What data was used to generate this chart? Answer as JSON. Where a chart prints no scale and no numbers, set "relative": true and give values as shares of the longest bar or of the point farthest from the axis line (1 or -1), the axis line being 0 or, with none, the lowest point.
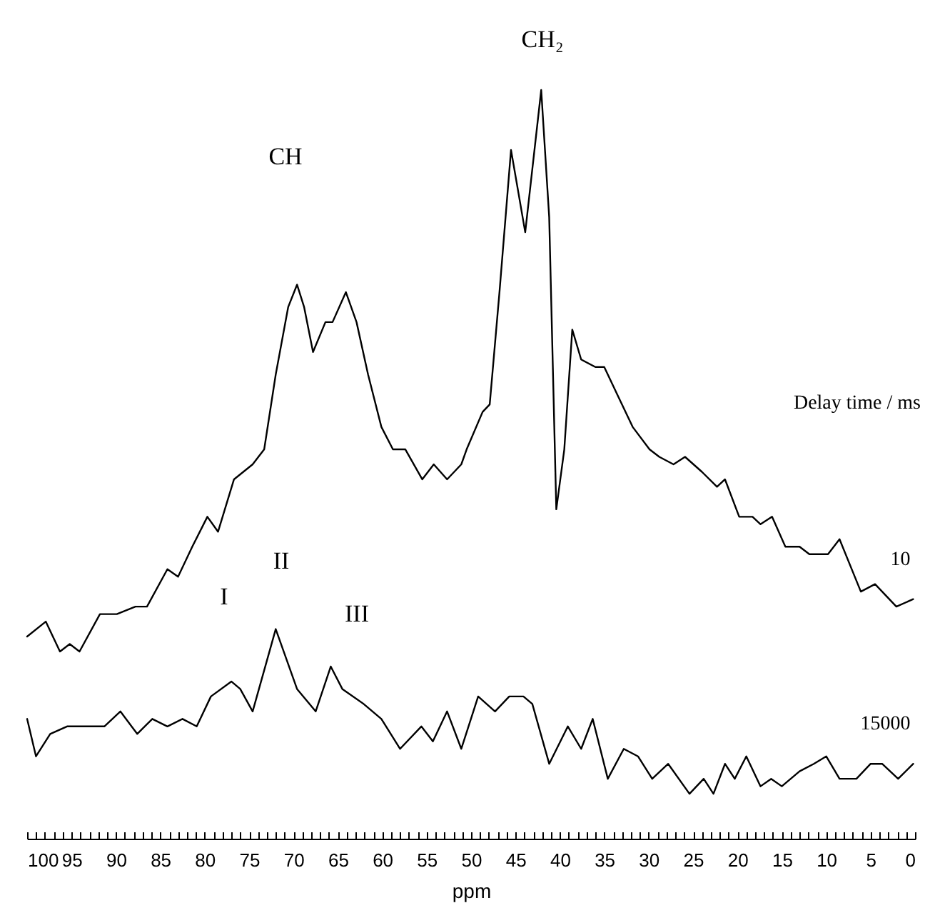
{
  "chart_data": {
    "type": "line",
    "relative": true,
    "xlabel": "ppm",
    "legend_title": "Delay time / ms",
    "xlim": [
      100,
      0
    ],
    "xticks": [
      100,
      {
        "value": 99,
        "label": null
      },
      {
        "value": 98,
        "label": null
      },
      {
        "value": 97,
        "label": null
      },
      {
        "value": 96,
        "label": null
      },
      95,
      {
        "value": 94,
        "label": null
      },
      {
        "value": 93,
        "label": null
      },
      {
        "value": 92,
        "label": null
      },
      {
        "value": 91,
        "label": null
      },
      90,
      {
        "value": 89,
        "label": null
      },
      {
        "value": 88,
        "label": null
      },
      {
        "value": 87,
        "label": null
      },
      {
        "value": 86,
        "label": null
      },
      85,
      {
        "value": 84,
        "label": null
      },
      {
        "value": 83,
        "label": null
      },
      {
        "value": 82,
        "label": null
      },
      {
        "value": 81,
        "label": null
      },
      80,
      {
        "value": 79,
        "label": null
      },
      {
        "value": 78,
        "label": null
      },
      {
        "value": 77,
        "label": null
      },
      {
        "value": 76,
        "label": null
      },
      75,
      {
        "value": 74,
        "label": null
      },
      {
        "value": 73,
        "label": null
      },
      {
        "value": 72,
        "label": null
      },
      {
        "value": 71,
        "label": null
      },
      70,
      {
        "value": 69,
        "label": null
      },
      {
        "value": 68,
        "label": null
      },
      {
        "value": 67,
        "label": null
      },
      {
        "value": 66,
        "label": null
      },
      65,
      {
        "value": 64,
        "label": null
      },
      {
        "value": 63,
        "label": null
      },
      {
        "value": 62,
        "label": null
      },
      {
        "value": 61,
        "label": null
      },
      60,
      {
        "value": 59,
        "label": null
      },
      {
        "value": 58,
        "label": null
      },
      {
        "value": 57,
        "label": null
      },
      {
        "value": 56,
        "label": null
      },
      55,
      {
        "value": 54,
        "label": null
      },
      {
        "value": 53,
        "label": null
      },
      {
        "value": 52,
        "label": null
      },
      {
        "value": 51,
        "label": null
      },
      50,
      {
        "value": 49,
        "label": null
      },
      {
        "value": 48,
        "label": null
      },
      {
        "value": 47,
        "label": null
      },
      {
        "value": 46,
        "label": null
      },
      45,
      {
        "value": 44,
        "label": null
      },
      {
        "value": 43,
        "label": null
      },
      {
        "value": 42,
        "label": null
      },
      {
        "value": 41,
        "label": null
      },
      40,
      {
        "value": 39,
        "label": null
      },
      {
        "value": 38,
        "label": null
      },
      {
        "value": 37,
        "label": null
      },
      {
        "value": 36,
        "label": null
      },
      35,
      {
        "value": 34,
        "label": null
      },
      {
        "value": 33,
        "label": null
      },
      {
        "value": 32,
        "label": null
      },
      {
        "value": 31,
        "label": null
      },
      30,
      {
        "value": 29,
        "label": null
      },
      {
        "value": 28,
        "label": null
      },
      {
        "value": 27,
        "label": null
      },
      {
        "value": 26,
        "label": null
      },
      25,
      {
        "value": 24,
        "label": null
      },
      {
        "value": 23,
        "label": null
      },
      {
        "value": 22,
        "label": null
      },
      {
        "value": 21,
        "label": null
      },
      20,
      {
        "value": 19,
        "label": null
      },
      {
        "value": 18,
        "label": null
      },
      {
        "value": 17,
        "label": null
      },
      {
        "value": 16,
        "label": null
      },
      15,
      {
        "value": 14,
        "label": null
      },
      {
        "value": 13,
        "label": null
      },
      {
        "value": 12,
        "label": null
      },
      {
        "value": 11,
        "label": null
      },
      10,
      {
        "value": 9,
        "label": null
      },
      {
        "value": 8,
        "label": null
      },
      {
        "value": 7,
        "label": null
      },
      {
        "value": 6,
        "label": null
      },
      5,
      {
        "value": 4,
        "label": null
      },
      {
        "value": 3,
        "label": null
      },
      {
        "value": 2,
        "label": null
      },
      {
        "value": 1,
        "label": null
      },
      0
    ],
    "series": [
      {
        "name": "10",
        "color": "#000000",
        "x": [
          100,
          97.9,
          96.3,
          95.2,
          94.1,
          91.8,
          89.9,
          87.8,
          86.5,
          84.2,
          83.0,
          81.4,
          79.7,
          78.5,
          76.7,
          74.6,
          73.3,
          72.0,
          70.6,
          69.6,
          68.8,
          67.8,
          66.4,
          65.6,
          64.1,
          62.9,
          61.6,
          60.1,
          58.8,
          57.4,
          55.5,
          54.2,
          52.7,
          51.1,
          50.5,
          48.7,
          47.9,
          46.8,
          45.5,
          43.9,
          42.1,
          41.2,
          40.4,
          39.5,
          38.6,
          37.6,
          36.0,
          35.0,
          33.4,
          31.8,
          29.9,
          28.8,
          27.2,
          25.9,
          24.0,
          22.3,
          21.4,
          19.8,
          18.3,
          17.4,
          16.1,
          14.6,
          13.0,
          11.9,
          9.8,
          8.5,
          6.1,
          4.5,
          2.1,
          0.2
        ],
        "values": [
          0.27,
          0.29,
          0.25,
          0.26,
          0.25,
          0.3,
          0.3,
          0.31,
          0.31,
          0.36,
          0.35,
          0.39,
          0.43,
          0.41,
          0.48,
          0.5,
          0.52,
          0.62,
          0.71,
          0.74,
          0.71,
          0.65,
          0.69,
          0.69,
          0.73,
          0.69,
          0.62,
          0.55,
          0.52,
          0.52,
          0.48,
          0.5,
          0.48,
          0.5,
          0.52,
          0.57,
          0.58,
          0.73,
          0.92,
          0.81,
          1,
          0.83,
          0.44,
          0.52,
          0.68,
          0.64,
          0.63,
          0.63,
          0.59,
          0.55,
          0.52,
          0.51,
          0.5,
          0.51,
          0.49,
          0.47,
          0.48,
          0.43,
          0.43,
          0.42,
          0.43,
          0.39,
          0.39,
          0.38,
          0.38,
          0.4,
          0.33,
          0.34,
          0.31,
          0.32
        ]
      },
      {
        "name": "15000",
        "color": "#000000",
        "x": [
          100,
          99.0,
          97.4,
          95.5,
          93.9,
          92.9,
          91.3,
          89.5,
          87.6,
          85.9,
          84.2,
          82.5,
          80.9,
          79.3,
          77.0,
          76.0,
          74.6,
          72.0,
          69.6,
          67.5,
          65.8,
          64.5,
          62.1,
          60.1,
          58.0,
          55.6,
          54.3,
          52.7,
          51.1,
          49.2,
          47.3,
          45.7,
          44.1,
          43.1,
          41.2,
          39.1,
          37.6,
          36.3,
          34.6,
          32.8,
          31.2,
          29.6,
          27.8,
          25.4,
          23.8,
          22.7,
          21.4,
          20.3,
          19.0,
          17.4,
          16.2,
          15.0,
          13.0,
          11.4,
          10.0,
          8.5,
          6.6,
          5.0,
          3.7,
          1.9,
          0.2
        ],
        "values": [
          0.16,
          0.11,
          0.14,
          0.15,
          0.15,
          0.15,
          0.15,
          0.17,
          0.14,
          0.16,
          0.15,
          0.16,
          0.15,
          0.19,
          0.21,
          0.2,
          0.17,
          0.28,
          0.2,
          0.17,
          0.23,
          0.2,
          0.18,
          0.16,
          0.12,
          0.15,
          0.13,
          0.17,
          0.12,
          0.19,
          0.17,
          0.19,
          0.19,
          0.18,
          0.1,
          0.15,
          0.12,
          0.16,
          0.08,
          0.12,
          0.11,
          0.08,
          0.1,
          0.06,
          0.08,
          0.06,
          0.1,
          0.08,
          0.11,
          0.07,
          0.08,
          0.07,
          0.09,
          0.1,
          0.11,
          0.08,
          0.08,
          0.1,
          0.1,
          0.08,
          0.1
        ]
      }
    ],
    "annotations": [
      "CH",
      "CH₂",
      "I",
      "II",
      "III"
    ]
  }
}
